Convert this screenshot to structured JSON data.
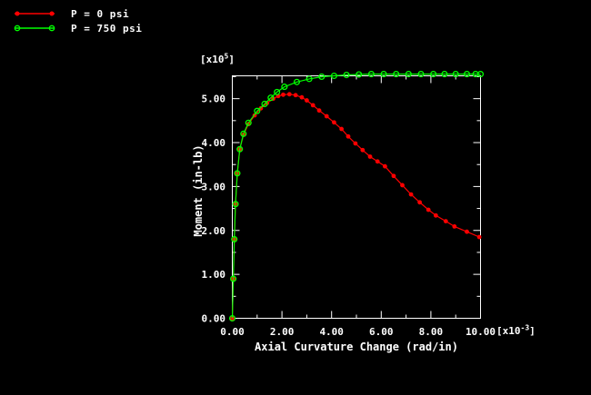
{
  "colors": {
    "background": "#000000",
    "axis": "#ffffff",
    "text": "#ffffff",
    "series_p0": "#ff0000",
    "series_p750": "#00ff00"
  },
  "legend": {
    "items": [
      {
        "label": "P = 0 psi",
        "color": "#ff0000",
        "marker": "filled-circle"
      },
      {
        "label": "P = 750 psi",
        "color": "#00ff00",
        "marker": "open-circle"
      }
    ]
  },
  "chart_data": {
    "type": "line",
    "title": "",
    "xlabel": "Axial Curvature Change (rad/in)",
    "ylabel": "Moment (in-lb)",
    "x_multiplier": {
      "prefix": "[x10",
      "exp": "-3",
      "suffix": "]"
    },
    "y_multiplier": {
      "prefix": "[x10",
      "exp": "5",
      "suffix": "]"
    },
    "xlim": [
      0,
      10
    ],
    "ylim": [
      0,
      5.52
    ],
    "grid": false,
    "legend_position": "top-left-outside",
    "x_ticks_major": [
      0,
      2,
      4,
      6,
      8,
      10
    ],
    "x_tick_labels": [
      "0.00",
      "2.00",
      "4.00",
      "6.00",
      "8.00",
      "10.00"
    ],
    "x_ticks_minor": [
      1,
      3,
      5,
      7,
      9
    ],
    "y_ticks_major": [
      0,
      1,
      2,
      3,
      4,
      5
    ],
    "y_tick_labels": [
      "0.00",
      "1.00",
      "2.00",
      "3.00",
      "4.00",
      "5.00"
    ],
    "y_ticks_minor": [
      0.5,
      1.5,
      2.5,
      3.5,
      4.5,
      5.5
    ],
    "series": [
      {
        "name": "P = 0 psi",
        "color": "#ff0000",
        "marker": "filled-circle",
        "points": [
          [
            0,
            0
          ],
          [
            0.04,
            0.9
          ],
          [
            0.08,
            1.8
          ],
          [
            0.13,
            2.6
          ],
          [
            0.2,
            3.3
          ],
          [
            0.3,
            3.85
          ],
          [
            0.45,
            4.18
          ],
          [
            0.65,
            4.42
          ],
          [
            0.9,
            4.62
          ],
          [
            1.15,
            4.78
          ],
          [
            1.4,
            4.9
          ],
          [
            1.65,
            5.0
          ],
          [
            1.85,
            5.06
          ],
          [
            2.05,
            5.09
          ],
          [
            2.3,
            5.1
          ],
          [
            2.55,
            5.08
          ],
          [
            2.8,
            5.03
          ],
          [
            3.0,
            4.96
          ],
          [
            3.25,
            4.85
          ],
          [
            3.5,
            4.73
          ],
          [
            3.8,
            4.6
          ],
          [
            4.1,
            4.46
          ],
          [
            4.4,
            4.31
          ],
          [
            4.67,
            4.14
          ],
          [
            4.96,
            3.98
          ],
          [
            5.25,
            3.83
          ],
          [
            5.55,
            3.68
          ],
          [
            5.85,
            3.57
          ],
          [
            6.15,
            3.46
          ],
          [
            6.5,
            3.24
          ],
          [
            6.85,
            3.03
          ],
          [
            7.2,
            2.82
          ],
          [
            7.55,
            2.64
          ],
          [
            7.9,
            2.47
          ],
          [
            8.2,
            2.34
          ],
          [
            8.6,
            2.21
          ],
          [
            8.95,
            2.09
          ],
          [
            9.45,
            1.97
          ],
          [
            9.95,
            1.85
          ]
        ]
      },
      {
        "name": "P = 750 psi",
        "color": "#00ff00",
        "marker": "open-circle",
        "points": [
          [
            0,
            0
          ],
          [
            0.04,
            0.9
          ],
          [
            0.08,
            1.8
          ],
          [
            0.13,
            2.6
          ],
          [
            0.2,
            3.3
          ],
          [
            0.3,
            3.85
          ],
          [
            0.45,
            4.2
          ],
          [
            0.65,
            4.45
          ],
          [
            1.0,
            4.72
          ],
          [
            1.3,
            4.88
          ],
          [
            1.55,
            5.02
          ],
          [
            1.8,
            5.15
          ],
          [
            2.1,
            5.27
          ],
          [
            2.6,
            5.38
          ],
          [
            3.1,
            5.45
          ],
          [
            3.6,
            5.5
          ],
          [
            4.1,
            5.52
          ],
          [
            4.6,
            5.54
          ],
          [
            5.1,
            5.55
          ],
          [
            5.6,
            5.56
          ],
          [
            6.1,
            5.56
          ],
          [
            6.6,
            5.56
          ],
          [
            7.1,
            5.56
          ],
          [
            7.6,
            5.56
          ],
          [
            8.1,
            5.56
          ],
          [
            8.55,
            5.56
          ],
          [
            9.0,
            5.56
          ],
          [
            9.45,
            5.56
          ],
          [
            9.8,
            5.56
          ],
          [
            10.0,
            5.56
          ]
        ]
      }
    ]
  }
}
